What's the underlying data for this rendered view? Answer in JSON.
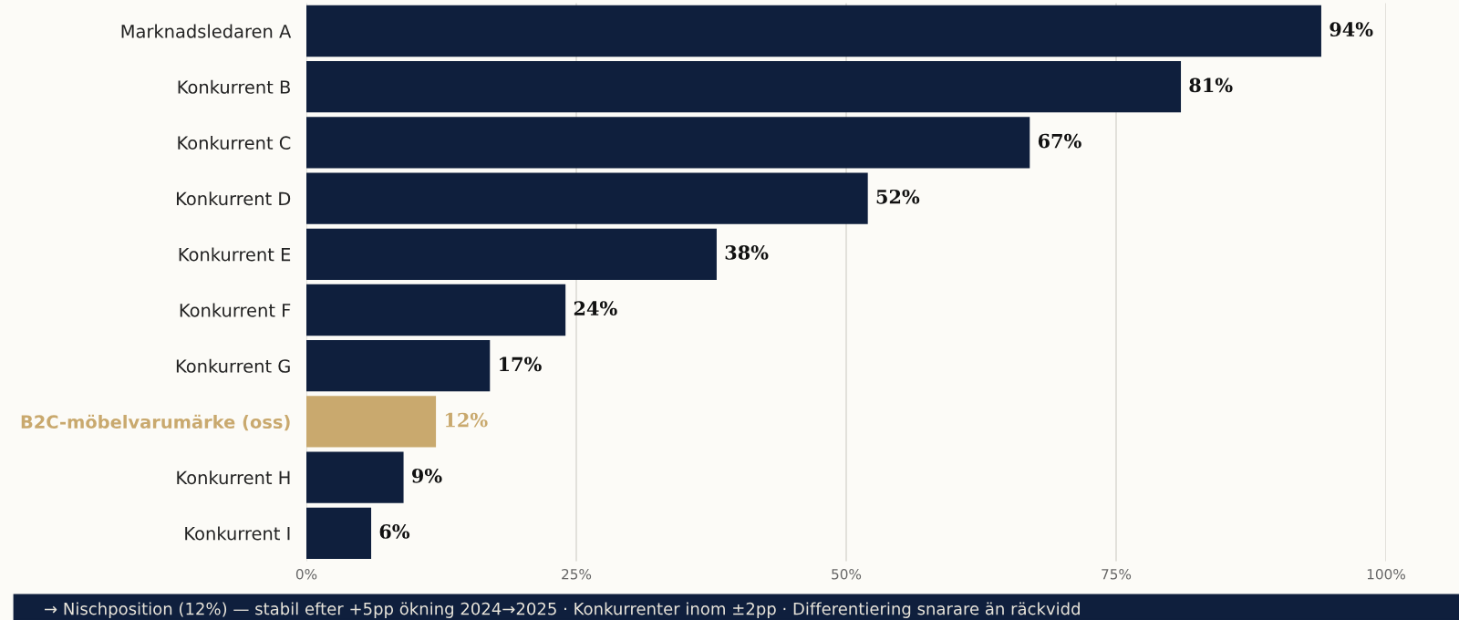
{
  "chart_data": {
    "type": "bar",
    "orientation": "horizontal",
    "categories": [
      "Marknadsledaren A",
      "Konkurrent B",
      "Konkurrent C",
      "Konkurrent D",
      "Konkurrent E",
      "Konkurrent F",
      "Konkurrent G",
      "B2C-möbelvarumärke (oss)",
      "Konkurrent H",
      "Konkurrent I"
    ],
    "values": [
      94,
      81,
      67,
      52,
      38,
      24,
      17,
      12,
      9,
      6
    ],
    "value_labels": [
      "94%",
      "81%",
      "67%",
      "52%",
      "38%",
      "24%",
      "17%",
      "12%",
      "9%",
      "6%"
    ],
    "colors": [
      "#0f1f3d",
      "#0f1f3d",
      "#0f1f3d",
      "#0f1f3d",
      "#0f1f3d",
      "#0f1f3d",
      "#0f1f3d",
      "#c9a96e",
      "#0f1f3d",
      "#0f1f3d"
    ],
    "xlim": [
      0,
      100
    ],
    "xticks": [
      {
        "value": 0,
        "label": "0%"
      },
      {
        "value": 25,
        "label": "25%"
      },
      {
        "value": 50,
        "label": "50%"
      },
      {
        "value": 75,
        "label": "75%"
      },
      {
        "value": 100,
        "label": "100%"
      }
    ],
    "grid": "x",
    "annotations": [
      "→ Nischposition (12%) — stabil efter +5pp ökning 2024→2025 · Konkurrenter inom ±2pp · Differentiering snarare än räckvidd"
    ]
  }
}
